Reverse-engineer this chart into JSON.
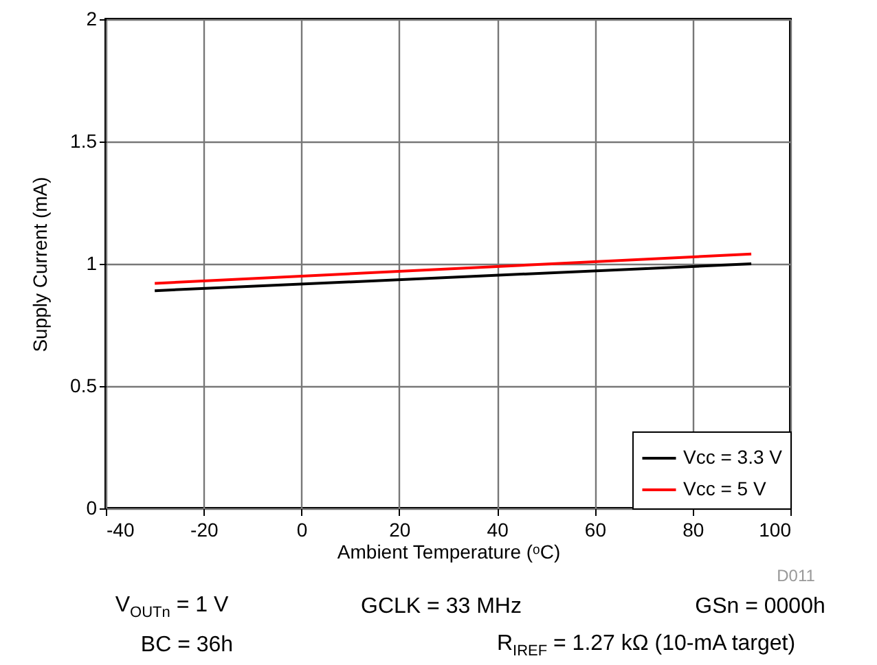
{
  "chart_data": {
    "type": "line",
    "xlabel": "Ambient Temperature (ᵒC)",
    "ylabel": "Supply Current (mA)",
    "x": [
      -30,
      92
    ],
    "series": [
      {
        "name": "Vcc = 3.3 V",
        "color": "#000000",
        "values": [
          0.89,
          1.0
        ]
      },
      {
        "name": "Vcc = 5 V",
        "color": "#ff0000",
        "values": [
          0.92,
          1.04
        ]
      }
    ],
    "xlim": [
      -40,
      100
    ],
    "xticks": [
      -40,
      -20,
      0,
      20,
      40,
      60,
      80,
      100
    ],
    "ylim": [
      0,
      2
    ],
    "yticks": [
      0,
      0.5,
      1,
      1.5,
      2
    ],
    "grid": true,
    "legend": "bottom right",
    "line_style": "solid",
    "annotations": [
      "D011",
      "V$_{OUTn}$ = 1 V",
      "GCLK = 33 MHz",
      "GSn = 0000h",
      "BC = 36h",
      "R$_{IREF}$ = 1.27 kΩ (10-mA target)"
    ]
  }
}
